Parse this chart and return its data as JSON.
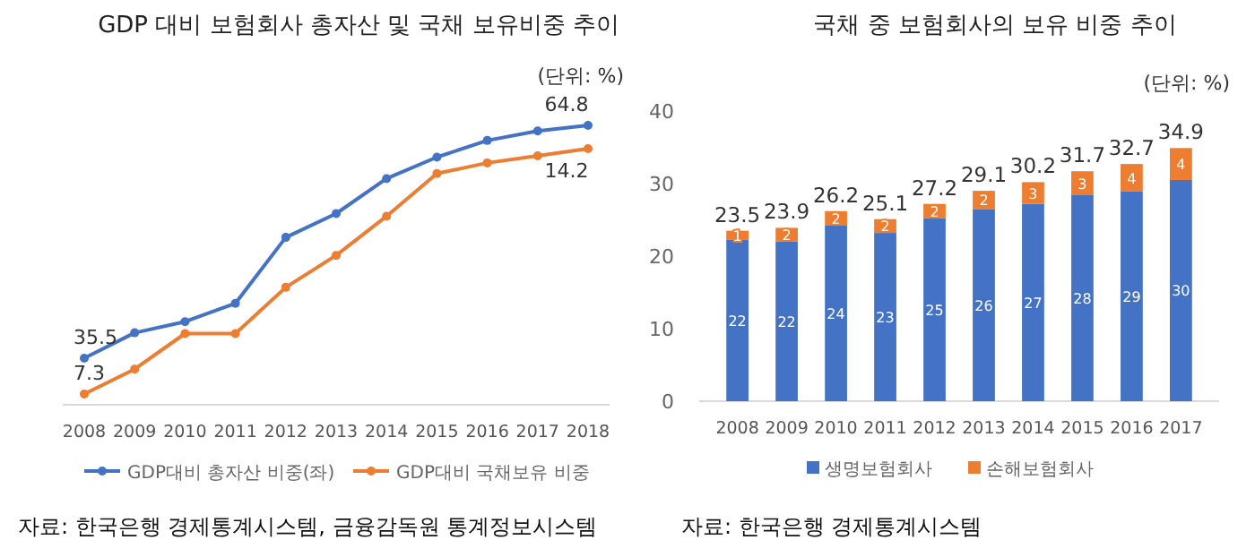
{
  "chart_data": [
    {
      "type": "line",
      "title": "GDP 대비 보험회사 총자산 및 국채 보유비중 추이",
      "categories": [
        "2008",
        "2009",
        "2010",
        "2011",
        "2012",
        "2013",
        "2014",
        "2015",
        "2016",
        "2017",
        "2018"
      ],
      "series": [
        {
          "name": "GDP대비 총자산 비중(좌)",
          "color": "#4472c4",
          "values": [
            35.5,
            38.7,
            40.1,
            42.4,
            50.7,
            53.7,
            58.1,
            60.8,
            62.9,
            64.1,
            64.8
          ],
          "value_labels": [
            "35.5",
            null,
            null,
            null,
            null,
            null,
            null,
            null,
            null,
            null,
            "64.8"
          ]
        },
        {
          "name": "GDP대비 국채보유 비중",
          "color": "#ed7d31",
          "axis": "y2",
          "values": [
            7.3,
            8.0,
            9.0,
            9.0,
            10.3,
            11.2,
            12.3,
            13.5,
            13.8,
            14.0,
            14.2
          ],
          "value_labels": [
            "7.3",
            null,
            null,
            null,
            null,
            null,
            null,
            null,
            null,
            null,
            "14.2"
          ]
        }
      ],
      "tick_labels": "x",
      "marker": "circle",
      "line_style": "solid",
      "legend": "bottom",
      "grid": false,
      "annotations": [
        "(단위: %)",
        "자료: 한국은행 경제통계시스템, 금융감독원 통계정보시스템"
      ]
    },
    {
      "type": "bar",
      "title": "국채 중 보험회사의 보유 비중 추이",
      "categories": [
        "2008",
        "2009",
        "2010",
        "2011",
        "2012",
        "2013",
        "2014",
        "2015",
        "2016",
        "2017"
      ],
      "stacked": true,
      "series": [
        {
          "name": "생명보험회사",
          "color": "#4472c4",
          "values": [
            22.3,
            22.0,
            24.2,
            23.2,
            25.2,
            26.5,
            27.2,
            28.4,
            28.9,
            30.5
          ],
          "value_labels": [
            "22",
            "22",
            "24",
            "23",
            "25",
            "26",
            "27",
            "28",
            "29",
            "30"
          ]
        },
        {
          "name": "손해보험회사",
          "color": "#ed7d31",
          "values": [
            1.2,
            1.9,
            2.0,
            1.9,
            2.0,
            2.5,
            3.0,
            3.3,
            3.8,
            4.4
          ],
          "value_labels": [
            "1",
            "2",
            "2",
            "2",
            "2",
            "2",
            "3",
            "3",
            "4",
            "4"
          ]
        }
      ],
      "totals": [
        "23.5",
        "23.9",
        "26.2",
        "25.1",
        "27.2",
        "29.1",
        "30.2",
        "31.7",
        "32.7",
        "34.9"
      ],
      "ylim": [
        0,
        40
      ],
      "yticks": [
        0,
        10,
        20,
        30,
        40
      ],
      "legend": "bottom",
      "grid": false,
      "annotations": [
        "(단위: %)",
        "자료: 한국은행 경제통계시스템"
      ]
    }
  ]
}
